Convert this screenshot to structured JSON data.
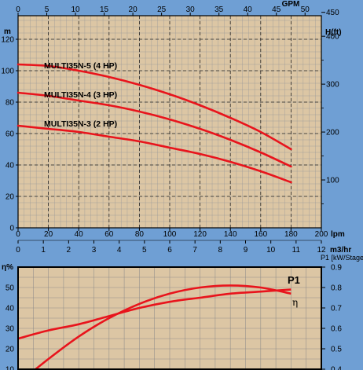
{
  "chart_data": [
    {
      "type": "line",
      "title": "",
      "x_axis_bottom": {
        "label": "lpm",
        "ticks": [
          "0",
          "20",
          "40",
          "60",
          "80",
          "100",
          "120",
          "140",
          "160",
          "180",
          "200"
        ],
        "range": [
          0,
          200
        ]
      },
      "x_axis_mid": {
        "label": "m3/hr",
        "ticks": [
          "0",
          "1",
          "2",
          "3",
          "4",
          "5",
          "6",
          "7",
          "8",
          "9",
          "10",
          "11",
          "12"
        ],
        "range": [
          0,
          12
        ]
      },
      "x_axis_top": {
        "label": "GPM",
        "ticks": [
          "0",
          "5",
          "10",
          "15",
          "20",
          "25",
          "30",
          "35",
          "40",
          "45",
          "50"
        ],
        "range": [
          0,
          52.8
        ]
      },
      "y_axis_left": {
        "label": "m",
        "ticks": [
          "0",
          "20",
          "40",
          "60",
          "80",
          "100",
          "120"
        ],
        "range": [
          0,
          135
        ]
      },
      "y_axis_right": {
        "label": "H(ft)",
        "ticks": [
          "100",
          "200",
          "300",
          "400",
          "450"
        ],
        "range": [
          0,
          443
        ]
      },
      "grid": true,
      "series": [
        {
          "name": "MULTI35N-5 (4 HP)",
          "x": [
            0,
            20,
            40,
            60,
            80,
            100,
            120,
            140,
            160,
            180
          ],
          "y": [
            104,
            103,
            100,
            96,
            91,
            85,
            78,
            70,
            61,
            50
          ]
        },
        {
          "name": "MULTI35N-4 (3 HP)",
          "x": [
            0,
            20,
            40,
            60,
            80,
            100,
            120,
            140,
            160,
            180
          ],
          "y": [
            86,
            84,
            81,
            78,
            74,
            69,
            63,
            56,
            48,
            39
          ]
        },
        {
          "name": "MULTI35N-3 (2 HP)",
          "x": [
            0,
            20,
            40,
            60,
            80,
            100,
            120,
            140,
            160,
            180
          ],
          "y": [
            65,
            63,
            61,
            58,
            55,
            51,
            47,
            42,
            36,
            29
          ]
        }
      ],
      "line_color": "#e8141c"
    },
    {
      "type": "line",
      "title": "",
      "y_axis_left": {
        "label": "η%",
        "ticks": [
          "10",
          "20",
          "30",
          "40",
          "50"
        ],
        "range": [
          10,
          60
        ]
      },
      "y_axis_right": {
        "label": "P1 [kW/Stage]",
        "ticks": [
          "0.4",
          "0.5",
          "0.6",
          "0.7",
          "0.8",
          "0.9"
        ],
        "range": [
          0.4,
          0.9
        ]
      },
      "x_range": [
        0,
        200
      ],
      "grid": true,
      "annotations": [
        "P1",
        "η"
      ],
      "series": [
        {
          "name": "η",
          "x": [
            0,
            20,
            40,
            60,
            80,
            100,
            120,
            140,
            160,
            180
          ],
          "y": [
            3,
            15,
            26,
            35,
            42,
            47,
            50,
            51,
            50,
            47
          ]
        },
        {
          "name": "P1",
          "x": [
            0,
            20,
            40,
            60,
            80,
            100,
            120,
            140,
            160,
            180
          ],
          "y": [
            0.55,
            0.59,
            0.62,
            0.66,
            0.7,
            0.73,
            0.75,
            0.77,
            0.78,
            0.79
          ]
        }
      ],
      "line_color": "#e8141c"
    }
  ]
}
